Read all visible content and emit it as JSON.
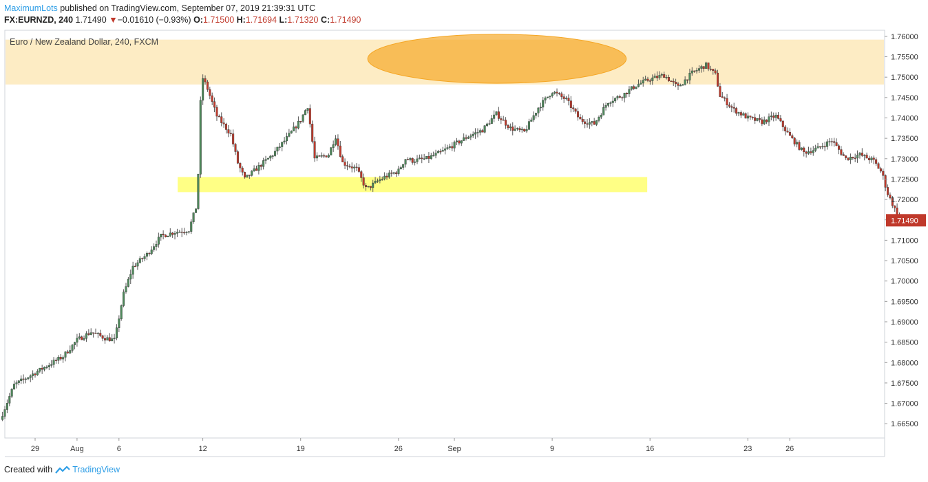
{
  "header": {
    "user": "MaximumLots",
    "published_text": "published on TradingView.com, September 07, 2019 21:39:31 UTC",
    "symbol": "FX:EURNZD, 240",
    "last": "1.71490",
    "change_arrow": "▼",
    "change": "−0.01610 (−0.93%)",
    "o_label": "O:",
    "o_value": "1.71500",
    "h_label": "H:",
    "h_value": "1.71694",
    "l_label": "L:",
    "l_value": "1.71320",
    "c_label": "C:",
    "c_value": "1.71490"
  },
  "footer": {
    "created_with": "Created with",
    "brand": "TradingView"
  },
  "colors": {
    "up": "#4f8a5c",
    "down": "#c0392b",
    "resistance_zone": "#fdecc4",
    "support_zone": "#ffff66",
    "ellipse": "#f5a623",
    "price_label_bg": "#c0392b",
    "brand": "#2e9ee6"
  },
  "chart_data": {
    "type": "candlestick",
    "title": "Euro / New Zealand Dollar, 240, FXCM",
    "ylim": [
      1.6615,
      1.7615
    ],
    "y_ticks": [
      "1.76000",
      "1.75500",
      "1.75000",
      "1.74500",
      "1.74000",
      "1.73500",
      "1.73000",
      "1.72500",
      "1.72000",
      "1.71500",
      "1.71000",
      "1.70500",
      "1.70000",
      "1.69500",
      "1.69000",
      "1.68500",
      "1.68000",
      "1.67500",
      "1.67000",
      "1.66500"
    ],
    "x_ticks": [
      {
        "label": "29",
        "day": 0
      },
      {
        "label": "Aug",
        "day": 3
      },
      {
        "label": "6",
        "day": 6
      },
      {
        "label": "12",
        "day": 12
      },
      {
        "label": "19",
        "day": 19
      },
      {
        "label": "26",
        "day": 26
      },
      {
        "label": "Sep",
        "day": 30
      },
      {
        "label": "9",
        "day": 37
      },
      {
        "label": "16",
        "day": 44
      },
      {
        "label": "23",
        "day": 51
      },
      {
        "label": "26",
        "day": 54
      }
    ],
    "last_price_label": "1.71490",
    "last_price": 1.7149,
    "annotations": [
      {
        "type": "zone",
        "name": "resistance",
        "from": 1.7482,
        "to": 1.7592,
        "x_start": -3,
        "x_end": null
      },
      {
        "type": "zone",
        "name": "support",
        "from": 1.7218,
        "to": 1.7255,
        "x_start": 10.2,
        "x_end": 43.8
      },
      {
        "type": "ellipse",
        "name": "top-highlight",
        "x_start": 23.8,
        "x_end": 42.3,
        "y_top": 1.7605,
        "y_bottom": 1.7485
      }
    ],
    "anchors": [
      [
        -2.5,
        1.666
      ],
      [
        -1.5,
        1.6745
      ],
      [
        0,
        1.6775
      ],
      [
        1,
        1.6795
      ],
      [
        2,
        1.6815
      ],
      [
        3,
        1.6855
      ],
      [
        4,
        1.6875
      ],
      [
        5,
        1.686
      ],
      [
        5.7,
        1.6855
      ],
      [
        6.3,
        1.6965
      ],
      [
        7,
        1.7035
      ],
      [
        8,
        1.7065
      ],
      [
        9,
        1.711
      ],
      [
        10,
        1.712
      ],
      [
        11,
        1.7125
      ],
      [
        11.6,
        1.719
      ],
      [
        11.9,
        1.7505
      ],
      [
        12.3,
        1.7475
      ],
      [
        13,
        1.7405
      ],
      [
        14,
        1.736
      ],
      [
        14.5,
        1.729
      ],
      [
        15,
        1.725
      ],
      [
        16,
        1.728
      ],
      [
        17,
        1.731
      ],
      [
        18,
        1.735
      ],
      [
        19,
        1.7395
      ],
      [
        19.5,
        1.743
      ],
      [
        20,
        1.73
      ],
      [
        21,
        1.731
      ],
      [
        21.5,
        1.7355
      ],
      [
        22,
        1.729
      ],
      [
        23,
        1.7275
      ],
      [
        23.7,
        1.7225
      ],
      [
        24.5,
        1.7245
      ],
      [
        25,
        1.7255
      ],
      [
        26,
        1.727
      ],
      [
        26.5,
        1.73
      ],
      [
        27,
        1.7295
      ],
      [
        28,
        1.73
      ],
      [
        29,
        1.7315
      ],
      [
        30,
        1.7335
      ],
      [
        31,
        1.7355
      ],
      [
        32,
        1.737
      ],
      [
        33,
        1.741
      ],
      [
        34,
        1.7375
      ],
      [
        35,
        1.7365
      ],
      [
        36,
        1.7425
      ],
      [
        37,
        1.7465
      ],
      [
        38,
        1.7445
      ],
      [
        39,
        1.7395
      ],
      [
        40,
        1.7385
      ],
      [
        41,
        1.744
      ],
      [
        42,
        1.7455
      ],
      [
        43,
        1.748
      ],
      [
        44,
        1.7495
      ],
      [
        45,
        1.7505
      ],
      [
        46,
        1.7475
      ],
      [
        47,
        1.751
      ],
      [
        48,
        1.753
      ],
      [
        48.7,
        1.7505
      ],
      [
        49,
        1.7455
      ],
      [
        50,
        1.742
      ],
      [
        51,
        1.74
      ],
      [
        52,
        1.739
      ],
      [
        53,
        1.7405
      ],
      [
        54,
        1.7355
      ],
      [
        55,
        1.7315
      ],
      [
        56,
        1.7325
      ],
      [
        57,
        1.7345
      ],
      [
        58,
        1.73
      ],
      [
        59,
        1.731
      ],
      [
        60,
        1.7295
      ],
      [
        60.6,
        1.7265
      ],
      [
        61,
        1.7215
      ],
      [
        61.6,
        1.717
      ],
      [
        62,
        1.7149
      ]
    ]
  }
}
